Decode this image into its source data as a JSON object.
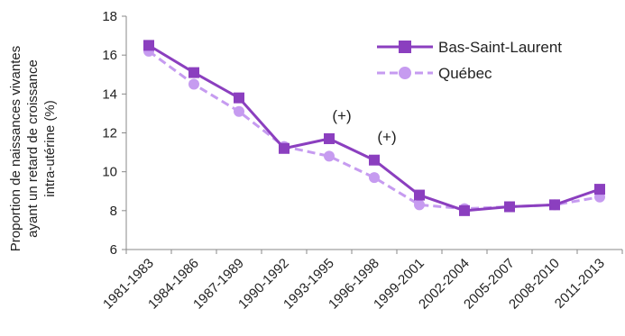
{
  "chart_data": {
    "type": "line",
    "categories": [
      "1981-1983",
      "1984-1986",
      "1987-1989",
      "1990-1992",
      "1993-1995",
      "1996-1998",
      "1999-2001",
      "2002-2004",
      "2005-2007",
      "2008-2010",
      "2011-2013"
    ],
    "series": [
      {
        "name": "Bas-Saint-Laurent",
        "values": [
          16.5,
          15.1,
          13.8,
          11.2,
          11.7,
          10.6,
          8.8,
          8.0,
          8.2,
          8.3,
          9.1
        ],
        "color": "#8b3fbf",
        "style": "solid",
        "marker": "square"
      },
      {
        "name": "Québec",
        "values": [
          16.2,
          14.5,
          13.1,
          11.3,
          10.8,
          9.7,
          8.3,
          8.1,
          8.2,
          8.3,
          8.7
        ],
        "color": "#c69bf0",
        "style": "dashed",
        "marker": "circle"
      }
    ],
    "ylim": [
      6,
      18
    ],
    "yticks": [
      6,
      8,
      10,
      12,
      14,
      16,
      18
    ],
    "ylabel_lines": [
      "Proportion de naissances vivantes",
      "ayant un retard de croissance",
      "intra-utérine (%)"
    ],
    "annotations": [
      {
        "category_index": 4,
        "text": "(+)"
      },
      {
        "category_index": 5,
        "text": "(+)"
      }
    ],
    "legend_position": "top-right",
    "grid": false
  }
}
